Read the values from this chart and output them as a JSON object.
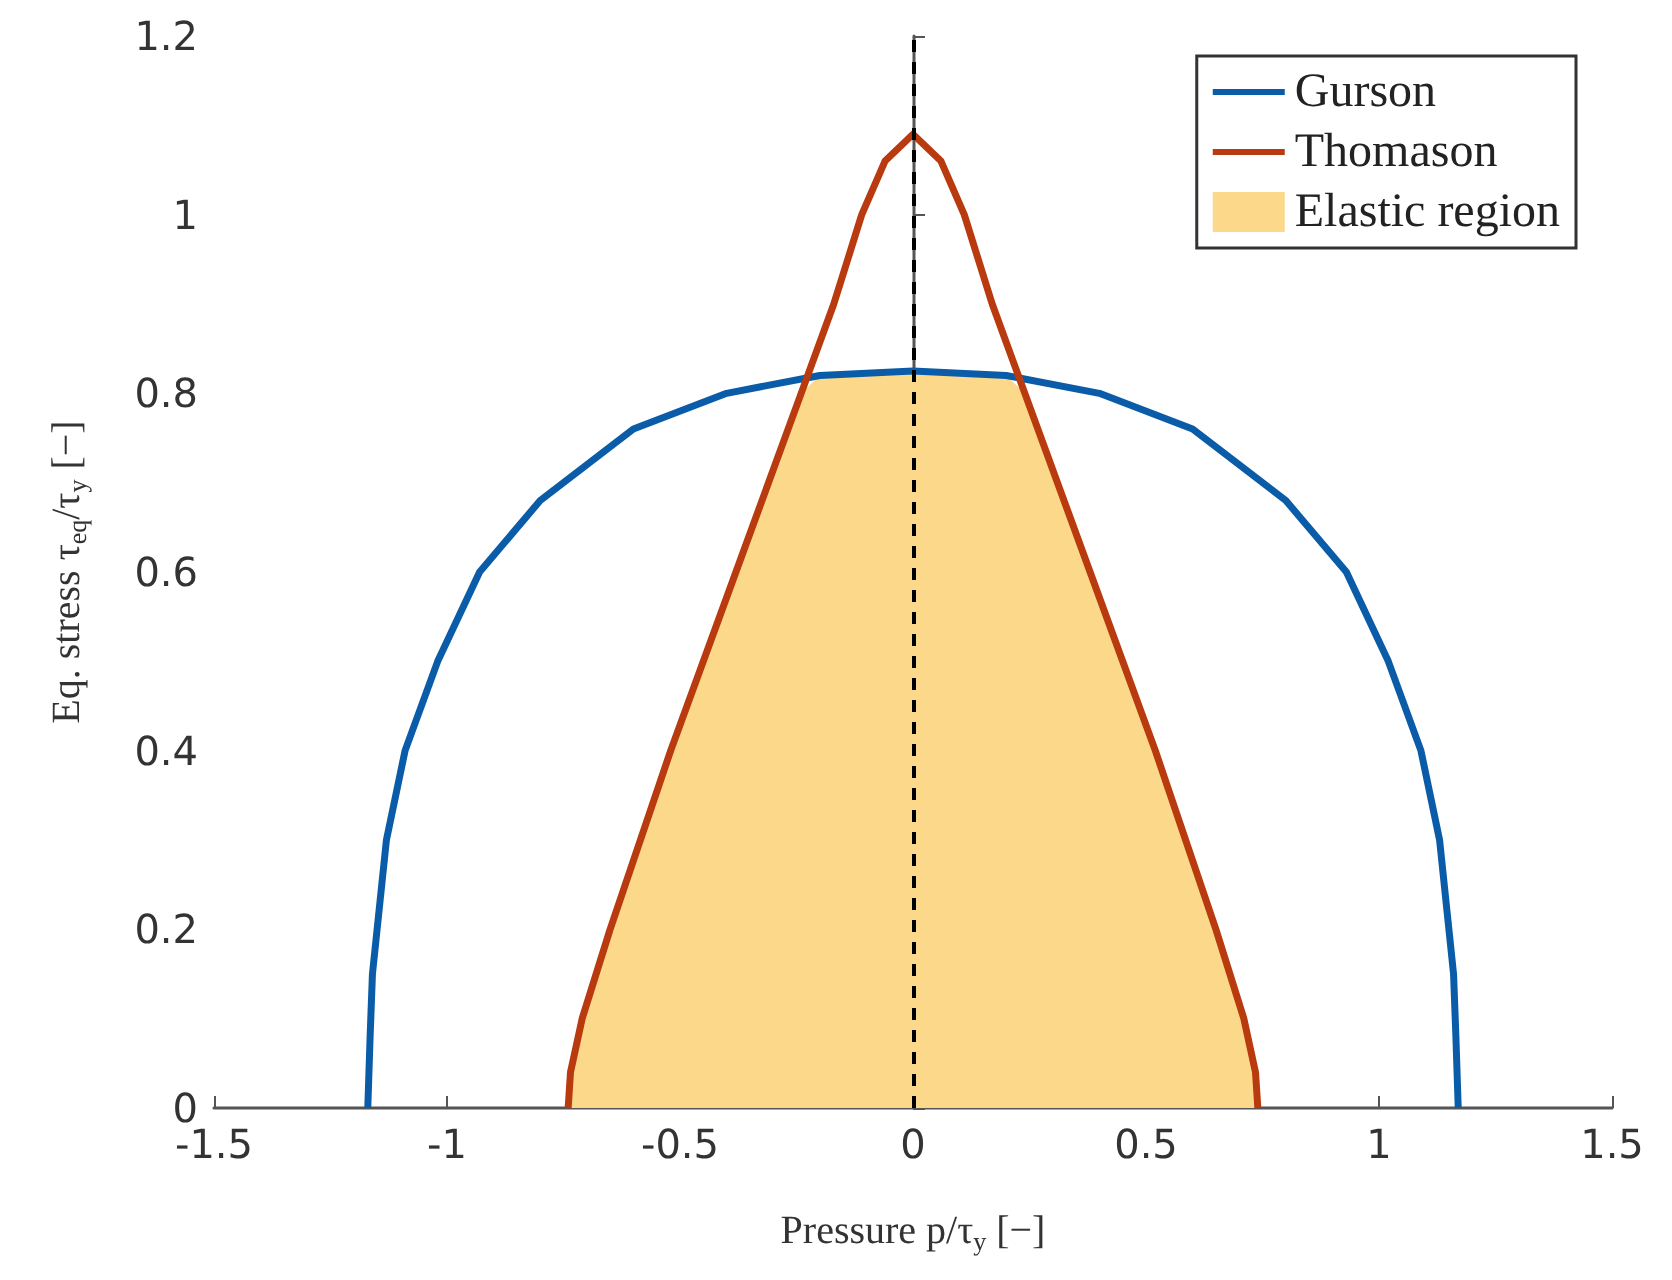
{
  "chart_data": {
    "type": "line",
    "xlabel": "Pressure p/τ$_{y}$ [−]",
    "ylabel": "Eq. stress τ$_{eq}$/τ$_{y}$ [−]",
    "xlim": [
      -1.5,
      1.5
    ],
    "xticks": [
      -1.5,
      -1,
      -0.5,
      0,
      0.5,
      1,
      1.5
    ],
    "ylim": [
      0,
      1.2
    ],
    "yticks": [
      0,
      0.2,
      0.4,
      0.6,
      0.8,
      1,
      1.2
    ],
    "grid": false,
    "legend": "top right",
    "marker": "none",
    "ref_lines": [
      {
        "axis": "x",
        "value": 0,
        "color": "#000000",
        "line_style": "dashed"
      }
    ],
    "series": [
      {
        "name": "Gurson",
        "type": "line",
        "color": "#0a5ca8",
        "x": [
          -1.17,
          -1.165,
          -1.16,
          -1.13,
          -1.09,
          -1.02,
          -0.93,
          -0.8,
          -0.6,
          -0.4,
          -0.2,
          0,
          0.2,
          0.4,
          0.6,
          0.8,
          0.93,
          1.02,
          1.09,
          1.13,
          1.16,
          1.165,
          1.17
        ],
        "values": [
          0,
          0.08,
          0.15,
          0.3,
          0.4,
          0.5,
          0.6,
          0.68,
          0.76,
          0.8,
          0.82,
          0.825,
          0.82,
          0.8,
          0.76,
          0.68,
          0.6,
          0.5,
          0.4,
          0.3,
          0.15,
          0.08,
          0
        ]
      },
      {
        "name": "Thomason",
        "type": "line",
        "color": "#b83a0e",
        "x": [
          -0.74,
          -0.735,
          -0.71,
          -0.65,
          -0.52,
          -0.38,
          -0.24,
          -0.17,
          -0.11,
          -0.06,
          0,
          0.06,
          0.11,
          0.17,
          0.24,
          0.38,
          0.52,
          0.65,
          0.71,
          0.735,
          0.74
        ],
        "values": [
          0,
          0.04,
          0.1,
          0.2,
          0.4,
          0.6,
          0.8,
          0.9,
          1,
          1.06,
          1.09,
          1.06,
          1,
          0.9,
          0.8,
          0.6,
          0.4,
          0.2,
          0.1,
          0.04,
          0
        ]
      },
      {
        "name": "Elastic region",
        "type": "area",
        "color": "#fcd98a",
        "x": [
          -0.74,
          -0.735,
          -0.71,
          -0.65,
          -0.52,
          -0.38,
          -0.24,
          -0.2,
          0,
          0.2,
          0.24,
          0.38,
          0.52,
          0.65,
          0.71,
          0.735,
          0.74
        ],
        "values": [
          0,
          0.04,
          0.1,
          0.2,
          0.4,
          0.6,
          0.8,
          0.82,
          0.825,
          0.82,
          0.8,
          0.6,
          0.4,
          0.2,
          0.1,
          0.04,
          0
        ]
      }
    ]
  }
}
